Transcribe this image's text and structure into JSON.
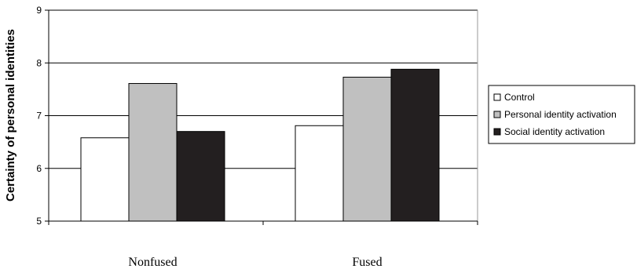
{
  "chart_data": {
    "type": "bar",
    "title": "",
    "xlabel": "",
    "ylabel": "Certainty of personal identities",
    "ylim": [
      5,
      9
    ],
    "yticks": [
      5,
      6,
      7,
      8,
      9
    ],
    "grid": true,
    "legend_position": "right",
    "categories": [
      "Nonfused",
      "Fused"
    ],
    "series": [
      {
        "name": "Control",
        "values": [
          6.58,
          6.81
        ],
        "color": "#ffffff"
      },
      {
        "name": "Personal identity activation",
        "values": [
          7.61,
          7.73
        ],
        "color": "#c0c0c0"
      },
      {
        "name": "Social identity activation",
        "values": [
          6.7,
          7.88
        ],
        "color": "#231f20"
      }
    ]
  }
}
